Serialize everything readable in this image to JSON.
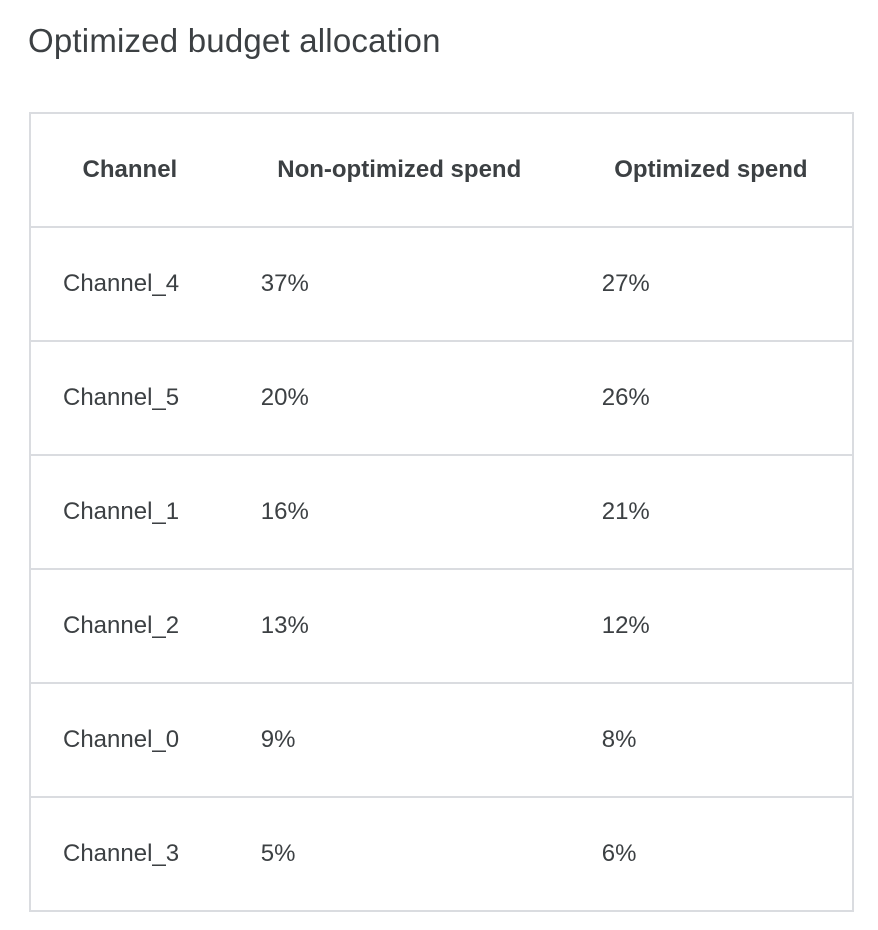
{
  "title": "Optimized budget allocation",
  "table": {
    "headers": [
      "Channel",
      "Non-optimized spend",
      "Optimized spend"
    ],
    "rows": [
      [
        "Channel_4",
        "37%",
        "27%"
      ],
      [
        "Channel_5",
        "20%",
        "26%"
      ],
      [
        "Channel_1",
        "16%",
        "21%"
      ],
      [
        "Channel_2",
        "13%",
        "12%"
      ],
      [
        "Channel_0",
        "9%",
        "8%"
      ],
      [
        "Channel_3",
        "5%",
        "6%"
      ]
    ]
  }
}
